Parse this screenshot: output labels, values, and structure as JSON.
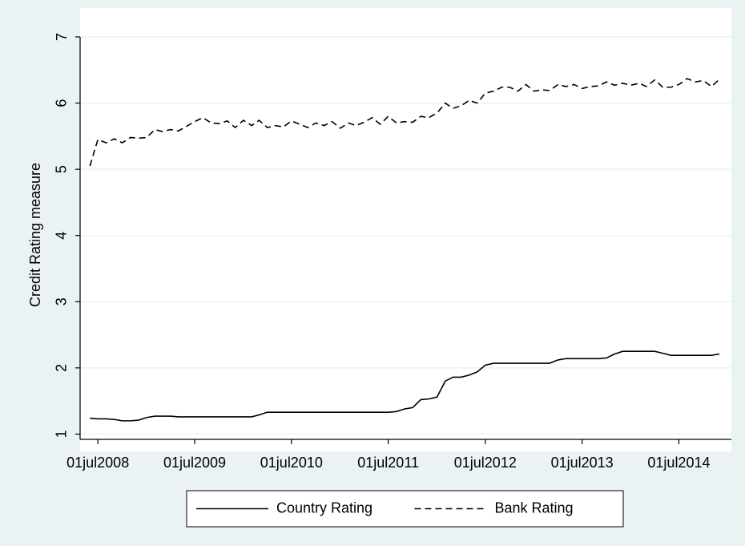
{
  "chart_data": {
    "type": "line",
    "y_label": "Credit Rating measure",
    "x": [
      "2008-06-01",
      "2008-07-01",
      "2008-08-01",
      "2008-09-01",
      "2008-10-01",
      "2008-11-01",
      "2008-12-01",
      "2009-01-01",
      "2009-02-01",
      "2009-03-01",
      "2009-04-01",
      "2009-05-01",
      "2009-06-01",
      "2009-07-01",
      "2009-08-01",
      "2009-09-01",
      "2009-10-01",
      "2009-11-01",
      "2009-12-01",
      "2010-01-01",
      "2010-02-01",
      "2010-03-01",
      "2010-04-01",
      "2010-05-01",
      "2010-06-01",
      "2010-07-01",
      "2010-08-01",
      "2010-09-01",
      "2010-10-01",
      "2010-11-01",
      "2010-12-01",
      "2011-01-01",
      "2011-02-01",
      "2011-03-01",
      "2011-04-01",
      "2011-05-01",
      "2011-06-01",
      "2011-07-01",
      "2011-08-01",
      "2011-09-01",
      "2011-10-01",
      "2011-11-01",
      "2011-12-01",
      "2012-01-01",
      "2012-02-01",
      "2012-03-01",
      "2012-04-01",
      "2012-05-01",
      "2012-06-01",
      "2012-07-01",
      "2012-08-01",
      "2012-09-01",
      "2012-10-01",
      "2012-11-01",
      "2012-12-01",
      "2013-01-01",
      "2013-02-01",
      "2013-03-01",
      "2013-04-01",
      "2013-05-01",
      "2013-06-01",
      "2013-07-01",
      "2013-08-01",
      "2013-09-01",
      "2013-10-01",
      "2013-11-01",
      "2013-12-01",
      "2014-01-01",
      "2014-02-01",
      "2014-03-01",
      "2014-04-01",
      "2014-05-01",
      "2014-06-01",
      "2014-07-01",
      "2014-08-01",
      "2014-09-01",
      "2014-10-01",
      "2014-11-01",
      "2014-12-01"
    ],
    "series": [
      {
        "name": "Country Rating",
        "color": "#000000",
        "style": "solid",
        "values": [
          1.24,
          1.23,
          1.23,
          1.22,
          1.2,
          1.2,
          1.21,
          1.25,
          1.27,
          1.27,
          1.27,
          1.26,
          1.26,
          1.26,
          1.26,
          1.26,
          1.26,
          1.26,
          1.26,
          1.26,
          1.26,
          1.29,
          1.33,
          1.33,
          1.33,
          1.33,
          1.33,
          1.33,
          1.33,
          1.33,
          1.33,
          1.33,
          1.33,
          1.33,
          1.33,
          1.33,
          1.33,
          1.33,
          1.34,
          1.38,
          1.4,
          1.52,
          1.53,
          1.56,
          1.8,
          1.86,
          1.86,
          1.89,
          1.94,
          2.04,
          2.07,
          2.07,
          2.07,
          2.07,
          2.07,
          2.07,
          2.07,
          2.07,
          2.12,
          2.14,
          2.14,
          2.14,
          2.14,
          2.14,
          2.15,
          2.21,
          2.25,
          2.25,
          2.25,
          2.25,
          2.25,
          2.22,
          2.19,
          2.19,
          2.19,
          2.19,
          2.19,
          2.19,
          2.21
        ]
      },
      {
        "name": "Bank Rating",
        "color": "#000000",
        "style": "dashed",
        "values": [
          5.05,
          5.45,
          5.4,
          5.46,
          5.4,
          5.48,
          5.47,
          5.48,
          5.6,
          5.57,
          5.6,
          5.58,
          5.65,
          5.72,
          5.78,
          5.7,
          5.69,
          5.73,
          5.63,
          5.74,
          5.66,
          5.74,
          5.63,
          5.66,
          5.64,
          5.73,
          5.68,
          5.63,
          5.7,
          5.66,
          5.72,
          5.62,
          5.7,
          5.66,
          5.71,
          5.78,
          5.68,
          5.8,
          5.7,
          5.72,
          5.71,
          5.8,
          5.78,
          5.85,
          6.0,
          5.92,
          5.96,
          6.04,
          6.0,
          6.15,
          6.18,
          6.24,
          6.24,
          6.18,
          6.28,
          6.18,
          6.2,
          6.19,
          6.28,
          6.25,
          6.28,
          6.22,
          6.25,
          6.26,
          6.32,
          6.27,
          6.3,
          6.27,
          6.3,
          6.25,
          6.35,
          6.24,
          6.24,
          6.28,
          6.37,
          6.32,
          6.34,
          6.25,
          6.36
        ]
      }
    ],
    "xlim": [
      "2008-04-25",
      "2015-01-15"
    ],
    "xticks": [
      {
        "value": "2008-07-01",
        "label": "01jul2008"
      },
      {
        "value": "2009-07-01",
        "label": "01jul2009"
      },
      {
        "value": "2010-07-01",
        "label": "01jul2010"
      },
      {
        "value": "2011-07-01",
        "label": "01jul2011"
      },
      {
        "value": "2012-07-01",
        "label": "01jul2012"
      },
      {
        "value": "2013-07-01",
        "label": "01jul2013"
      },
      {
        "value": "2014-07-01",
        "label": "01jul2014"
      }
    ],
    "ylim": [
      0.92,
      7
    ],
    "yticks": [
      1,
      2,
      3,
      4,
      5,
      6,
      7
    ],
    "grid": true,
    "legend": "bottom"
  }
}
